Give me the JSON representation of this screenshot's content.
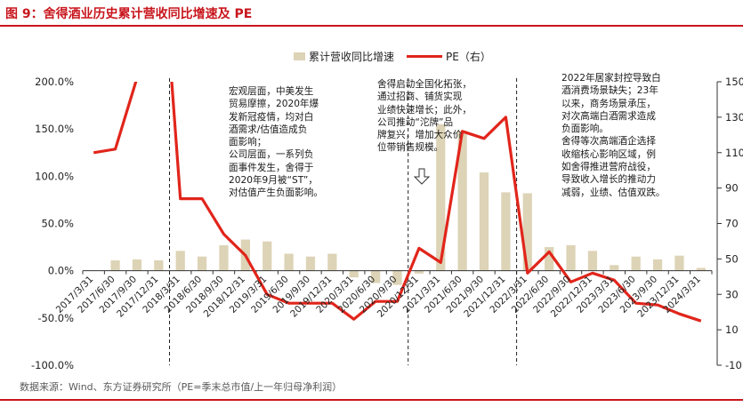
{
  "title": "图 9：舍得酒业历史累计营收同比增速及 PE",
  "source": "数据来源：Wind、东方证券研究所（PE=季末总市值/上一年归母净利润）",
  "annotations": [
    "宏观层面，中美发生\n贸易摩擦，2020年爆\n发新冠疫情，均对白\n酒需求/估值造成负\n面影响；\n公司层面，一系列负\n面事件发生，舍得于\n2020年9月被“ST”，\n对估值产生负面影响。",
    "舍得启动全国化拓张，\n通过招商、铺货实现\n业绩快速增长；此外，\n公司推动“沱牌”品\n牌复兴，增加大众价\n位带销售规模。",
    "2022年居家封控导致白\n酒消费场景缺失；23年\n以来，商务场景承压，\n对次高端白酒需求造成\n负面影响。\n舍得等次高端酒企选择\n收缩核心影响区域，例\n如舍得推进营府战役，\n导致收入增长的推动力\n减弱，业绩、估值双跌。"
  ],
  "chart_data": {
    "type": "bar+line",
    "categories": [
      "2017/3/31",
      "2017/6/30",
      "2017/9/30",
      "2017/12/31",
      "2018/3/31",
      "2018/6/30",
      "2018/9/30",
      "2018/12/31",
      "2019/3/31",
      "2019/6/30",
      "2019/9/30",
      "2019/12/31",
      "2020/3/31",
      "2020/6/30",
      "2020/9/30",
      "2020/12/31",
      "2021/3/31",
      "2021/6/30",
      "2021/9/30",
      "2021/12/31",
      "2022/3/31",
      "2022/6/30",
      "2022/9/30",
      "2022/12/31",
      "2023/3/31",
      "2023/6/30",
      "2023/9/30",
      "2023/12/31",
      "2024/3/31"
    ],
    "series": [
      {
        "name": "累计营收同比增速",
        "axis": "left",
        "kind": "bar",
        "color": "#ddd3b6",
        "values": [
          null,
          11,
          12,
          11,
          21,
          15,
          27,
          33,
          31,
          18,
          15,
          18,
          -7,
          -13,
          -15,
          -3,
          155,
          148,
          104,
          83,
          82,
          25,
          27,
          21,
          6,
          15,
          12,
          16,
          3
        ]
      },
      {
        "name": "PE（右）",
        "axis": "right",
        "kind": "line",
        "color": "#e1251b",
        "values": [
          110,
          112,
          152,
          250,
          84,
          84,
          64,
          52,
          30,
          25,
          25,
          25,
          16,
          26,
          26,
          56,
          48,
          122,
          118,
          130,
          42,
          54,
          37,
          42,
          38,
          25,
          24,
          19,
          15
        ]
      }
    ],
    "y_left": {
      "min": -100,
      "max": 200,
      "step": 50,
      "format": "percent1"
    },
    "y_right": {
      "min": -10,
      "max": 150,
      "step": 20
    },
    "vertical_dividers_after": [
      "2017/12/31",
      "2020/9/30",
      "2021/12/31"
    ],
    "legend_position": "top-center",
    "grid": false
  }
}
